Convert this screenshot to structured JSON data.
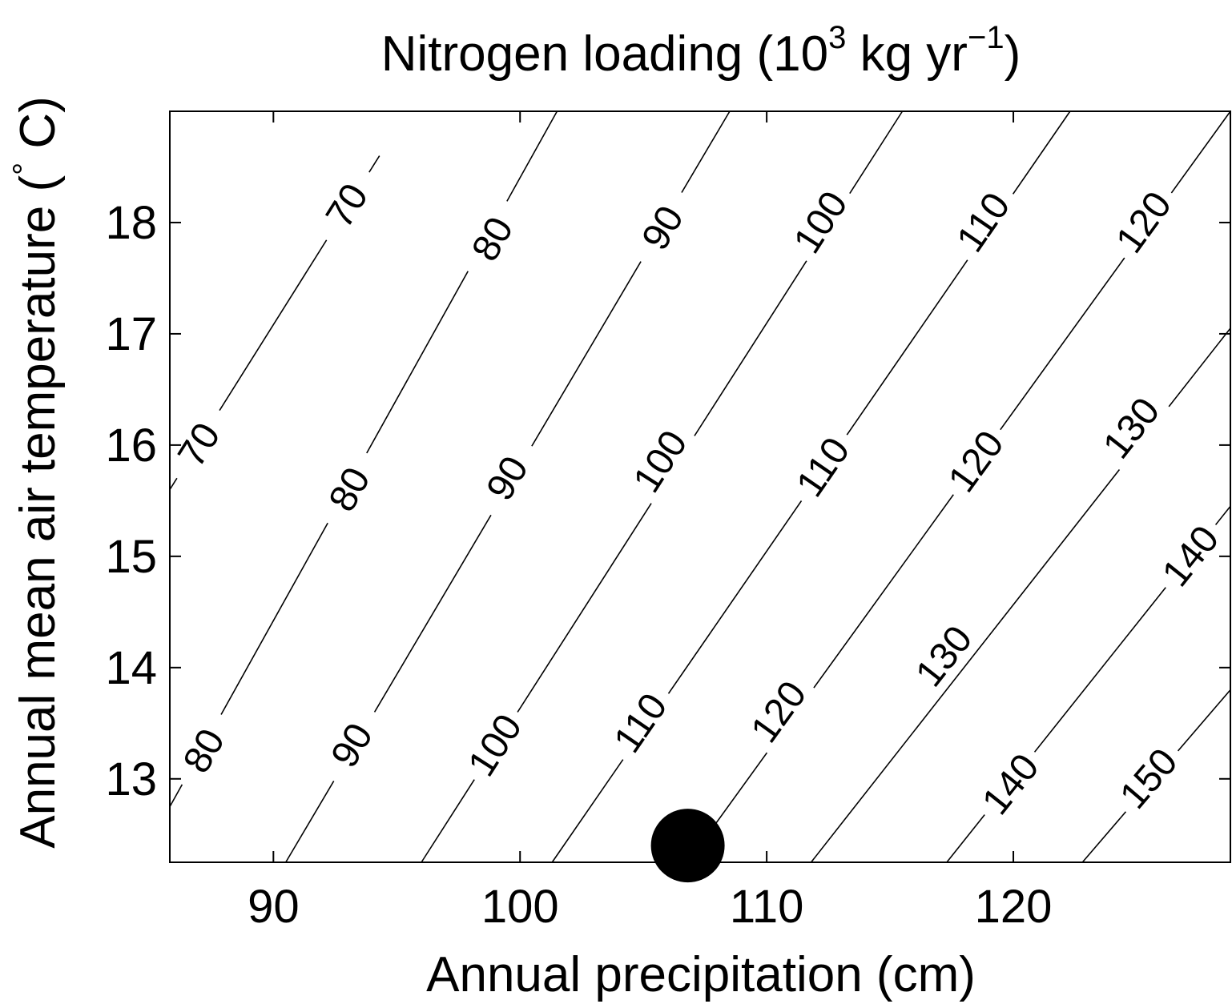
{
  "chart_data": {
    "type": "contour",
    "title": "Nitrogen loading (10",
    "title_exponent": "3",
    "title_unit": " kg yr",
    "title_unit_exponent": "−1",
    "title_close": ")",
    "xlabel": "Annual precipitation (cm)",
    "ylabel_prefix": "Annual mean air temperature (",
    "ylabel_degree": "°",
    "ylabel_suffix": " C)",
    "xlim": [
      85.8,
      128.8
    ],
    "ylim": [
      12.25,
      19.0
    ],
    "x_ticks": [
      90,
      100,
      110,
      120
    ],
    "y_ticks": [
      13,
      14,
      15,
      16,
      17,
      18
    ],
    "grid": false,
    "contour_lines": [
      {
        "level": 70,
        "points": [
          [
            85.8,
            15.6
          ],
          [
            94.3,
            18.6
          ]
        ],
        "labels": [
          [
            87.0,
            16.0
          ],
          [
            93.0,
            18.15
          ]
        ]
      },
      {
        "level": 80,
        "points": [
          [
            85.8,
            12.75
          ],
          [
            101.5,
            19.0
          ]
        ],
        "labels": [
          [
            87.2,
            13.25
          ],
          [
            93.1,
            15.6
          ],
          [
            98.9,
            17.85
          ]
        ]
      },
      {
        "level": 90,
        "points": [
          [
            90.5,
            12.25
          ],
          [
            108.5,
            19.0
          ]
        ],
        "labels": [
          [
            93.2,
            13.3
          ],
          [
            99.5,
            15.7
          ],
          [
            105.8,
            17.95
          ]
        ]
      },
      {
        "level": 100,
        "points": [
          [
            96.0,
            12.25
          ],
          [
            115.5,
            19.0
          ]
        ],
        "labels": [
          [
            99.0,
            13.3
          ],
          [
            105.7,
            15.85
          ],
          [
            112.2,
            18.0
          ]
        ]
      },
      {
        "level": 110,
        "points": [
          [
            101.3,
            12.25
          ],
          [
            122.3,
            19.0
          ]
        ],
        "labels": [
          [
            104.9,
            13.5
          ],
          [
            112.3,
            15.8
          ],
          [
            118.8,
            18.0
          ]
        ]
      },
      {
        "level": 120,
        "points": [
          [
            106.8,
            12.25
          ],
          [
            128.8,
            19.0
          ]
        ],
        "labels": [
          [
            110.5,
            13.6
          ],
          [
            118.5,
            15.85
          ],
          [
            125.3,
            18.0
          ]
        ]
      },
      {
        "level": 130,
        "points": [
          [
            111.8,
            12.25
          ],
          [
            128.8,
            17.05
          ]
        ],
        "labels": [
          [
            117.2,
            14.1
          ],
          [
            124.8,
            16.15
          ]
        ]
      },
      {
        "level": 140,
        "points": [
          [
            117.3,
            12.25
          ],
          [
            128.8,
            15.45
          ]
        ],
        "labels": [
          [
            119.9,
            12.95
          ],
          [
            127.2,
            15.0
          ]
        ]
      },
      {
        "level": 150,
        "points": [
          [
            122.8,
            12.25
          ],
          [
            128.8,
            13.8
          ]
        ],
        "labels": [
          [
            125.5,
            13.0
          ]
        ]
      }
    ],
    "markers": [
      {
        "x": 106.8,
        "y": 12.4,
        "shape": "filled-circle",
        "color": "#000000"
      }
    ]
  }
}
